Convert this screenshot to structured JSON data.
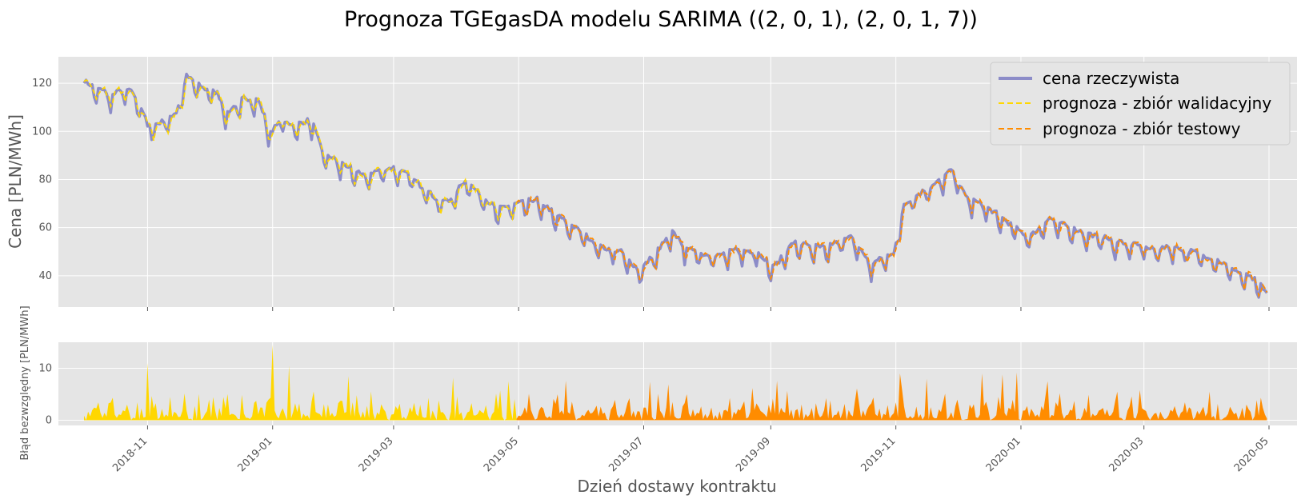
{
  "chart_data": [
    {
      "type": "line",
      "title": "Prognoza TGEgasDA modelu SARIMA ((2, 0, 1), (2, 0, 1, 7))",
      "xlabel": "",
      "ylabel": "Cena [PLN/MWh]",
      "x_range": [
        "2018-10-01",
        "2020-05-01"
      ],
      "ylim": [
        27,
        131
      ],
      "yticks": [
        40,
        60,
        80,
        100,
        120
      ],
      "grid": true,
      "legend": "top-right",
      "colors": {
        "actual": "#8c8cc8",
        "validation": "#ffd700",
        "test": "#ff8c00",
        "background": "#e5e5e5"
      },
      "split_date": "2019-04-30",
      "anchors": {
        "x": [
          "2018-10-01",
          "2018-10-05",
          "2018-10-10",
          "2018-10-15",
          "2018-10-20",
          "2018-10-25",
          "2018-10-30",
          "2018-11-01",
          "2018-11-08",
          "2018-11-15",
          "2018-11-20",
          "2018-11-28",
          "2018-12-05",
          "2018-12-10",
          "2018-12-18",
          "2018-12-25",
          "2018-12-31",
          "2019-01-05",
          "2019-01-12",
          "2019-01-20",
          "2019-01-25",
          "2019-02-01",
          "2019-02-08",
          "2019-02-15",
          "2019-02-22",
          "2019-03-01",
          "2019-03-08",
          "2019-03-15",
          "2019-03-22",
          "2019-03-28",
          "2019-04-05",
          "2019-04-12",
          "2019-04-20",
          "2019-04-30",
          "2019-05-10",
          "2019-05-20",
          "2019-06-01",
          "2019-06-10",
          "2019-06-20",
          "2019-06-29",
          "2019-07-07",
          "2019-07-15",
          "2019-07-25",
          "2019-08-05",
          "2019-08-15",
          "2019-08-25",
          "2019-09-03",
          "2019-09-12",
          "2019-09-22",
          "2019-10-01",
          "2019-10-10",
          "2019-10-20",
          "2019-10-31",
          "2019-11-05",
          "2019-11-12",
          "2019-11-20",
          "2019-11-28",
          "2019-12-05",
          "2019-12-12",
          "2019-12-20",
          "2019-12-26",
          "2020-01-05",
          "2020-01-15",
          "2020-01-25",
          "2020-02-05",
          "2020-02-15",
          "2020-02-25",
          "2020-03-05",
          "2020-03-15",
          "2020-03-25",
          "2020-04-05",
          "2020-04-15",
          "2020-04-25",
          "2020-04-30"
        ],
        "y": [
          121,
          119,
          117,
          115,
          118,
          116,
          108,
          102,
          104,
          108,
          123,
          118,
          116,
          108,
          114,
          113,
          100,
          104,
          103,
          105,
          92,
          88,
          85,
          82,
          84,
          85,
          82,
          77,
          72,
          71,
          80,
          74,
          68,
          70,
          72,
          65,
          58,
          52,
          50,
          42,
          50,
          58,
          50,
          48,
          51,
          50,
          44,
          54,
          52,
          53,
          56,
          45,
          50,
          70,
          74,
          78,
          84,
          73,
          70,
          66,
          62,
          56,
          64,
          60,
          57,
          55,
          53,
          51,
          52,
          50,
          47,
          42,
          38,
          33
        ]
      }
    },
    {
      "type": "area",
      "ylabel": "Błąd bezwzględny [PLN/MWh]",
      "xlabel": "Dzień dostawy kontraktu",
      "ylim": [
        -1,
        15
      ],
      "yticks": [
        0,
        10
      ],
      "xticks": [
        "2018-11",
        "2019-01",
        "2019-03",
        "2019-05",
        "2019-07",
        "2019-09",
        "2019-11",
        "2020-01",
        "2020-03",
        "2020-05"
      ],
      "spikes": {
        "x": [
          "2018-11-01",
          "2019-01-01",
          "2019-01-09",
          "2019-02-07",
          "2019-03-30",
          "2019-04-26",
          "2019-05-24",
          "2019-07-04",
          "2019-07-13",
          "2019-08-23",
          "2019-09-04",
          "2019-10-13",
          "2019-11-03",
          "2019-11-16",
          "2019-12-13",
          "2019-12-23",
          "2019-12-30",
          "2020-01-14",
          "2020-02-28",
          "2020-04-02"
        ],
        "y": [
          11,
          14.5,
          10.5,
          8.5,
          8.2,
          7.5,
          7.6,
          7.4,
          6.9,
          6.2,
          7.6,
          6.1,
          9,
          8,
          9,
          8.8,
          9.2,
          7.5,
          5.8,
          5.5
        ]
      }
    }
  ],
  "legend_items": [
    {
      "label": "cena rzeczywista"
    },
    {
      "label": "prognoza - zbiór walidacyjny"
    },
    {
      "label": "prognoza - zbiór testowy"
    }
  ]
}
